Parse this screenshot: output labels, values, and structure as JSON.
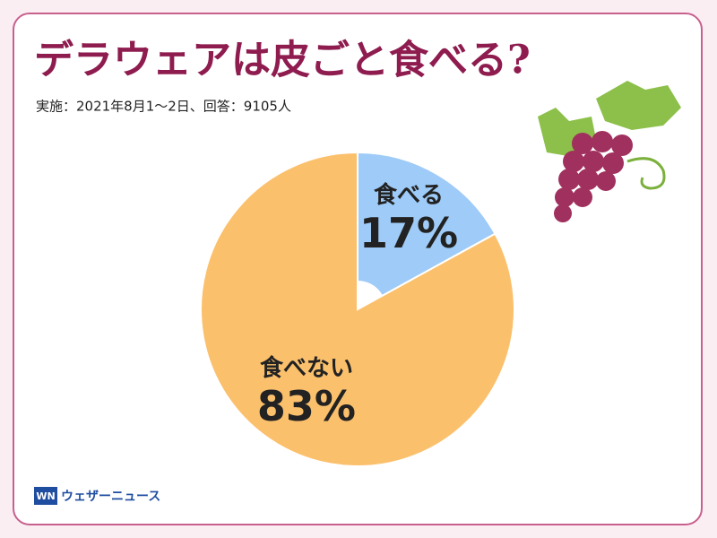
{
  "chart_data": {
    "type": "pie",
    "title": "デラウェアは皮ごと食べる?",
    "subtitle": "実施：2021年8月1～2日、回答：9105人",
    "categories": [
      "食べる",
      "食べない"
    ],
    "values": [
      17,
      83
    ],
    "value_labels": [
      "17%",
      "83%"
    ],
    "colors": [
      "#9ecbf7",
      "#fbc06c"
    ],
    "logo": "ウェザーニュース"
  }
}
